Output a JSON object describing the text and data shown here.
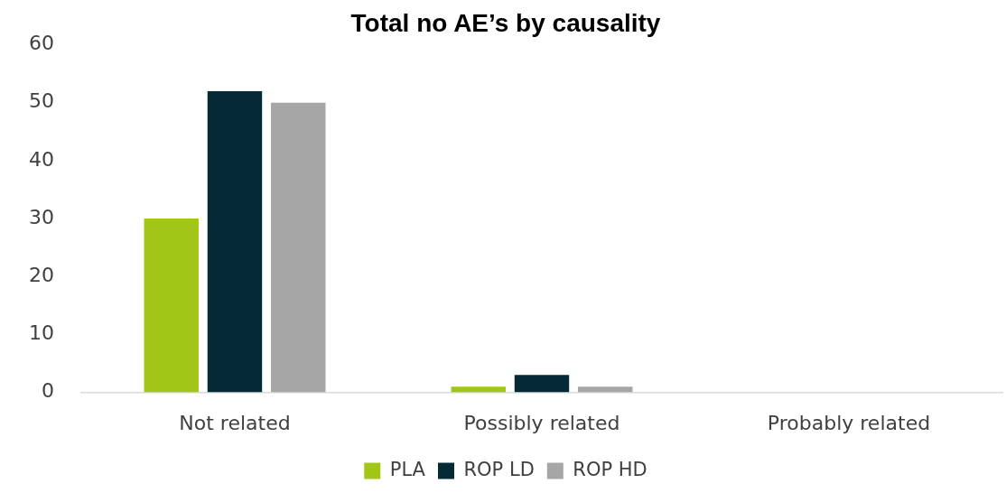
{
  "chart_data": {
    "type": "bar",
    "title": "Total no AE’s by causality",
    "categories": [
      "Not related",
      "Possibly related",
      "Probably related"
    ],
    "series": [
      {
        "name": "PLA",
        "color": "#a2c617",
        "values": [
          30,
          1,
          0
        ]
      },
      {
        "name": "ROP LD",
        "color": "#052935",
        "values": [
          52,
          3,
          0
        ]
      },
      {
        "name": "ROP HD",
        "color": "#a6a6a6",
        "values": [
          50,
          1,
          0
        ]
      }
    ],
    "ylim": [
      0,
      60
    ],
    "yticks": [
      0,
      10,
      20,
      30,
      40,
      50,
      60
    ],
    "grid": false,
    "legend": "bottom"
  }
}
